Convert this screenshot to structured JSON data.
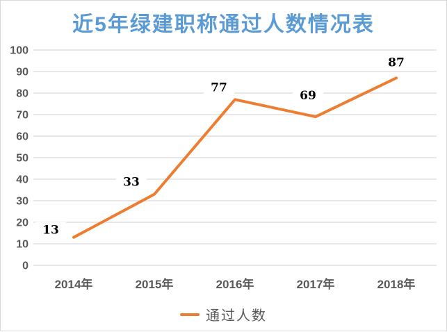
{
  "chart_data": {
    "type": "line",
    "title": "近5年绿建职称通过人数情况表",
    "categories": [
      "2014年",
      "2015年",
      "2016年",
      "2017年",
      "2018年"
    ],
    "series": [
      {
        "name": "通过人数",
        "values": [
          13,
          33,
          77,
          69,
          87
        ],
        "color": "#ED7D31"
      }
    ],
    "data_labels": [
      "13",
      "33",
      "77",
      "69",
      "87"
    ],
    "xlabel": "",
    "ylabel": "",
    "ylim": [
      0,
      100
    ],
    "yticks": [
      0,
      10,
      20,
      30,
      40,
      50,
      60,
      70,
      80,
      90,
      100
    ],
    "grid": "horizontal",
    "legend_position": "bottom"
  },
  "legend": {
    "label": "通过人数"
  },
  "colors": {
    "title": "#5B9BD5",
    "line": "#ED7D31",
    "axis_text": "#595959",
    "gridline": "#D9D9D9",
    "data_label": "#000000",
    "frame_border": "#D9D9D9",
    "background": "#FFFFFF"
  }
}
